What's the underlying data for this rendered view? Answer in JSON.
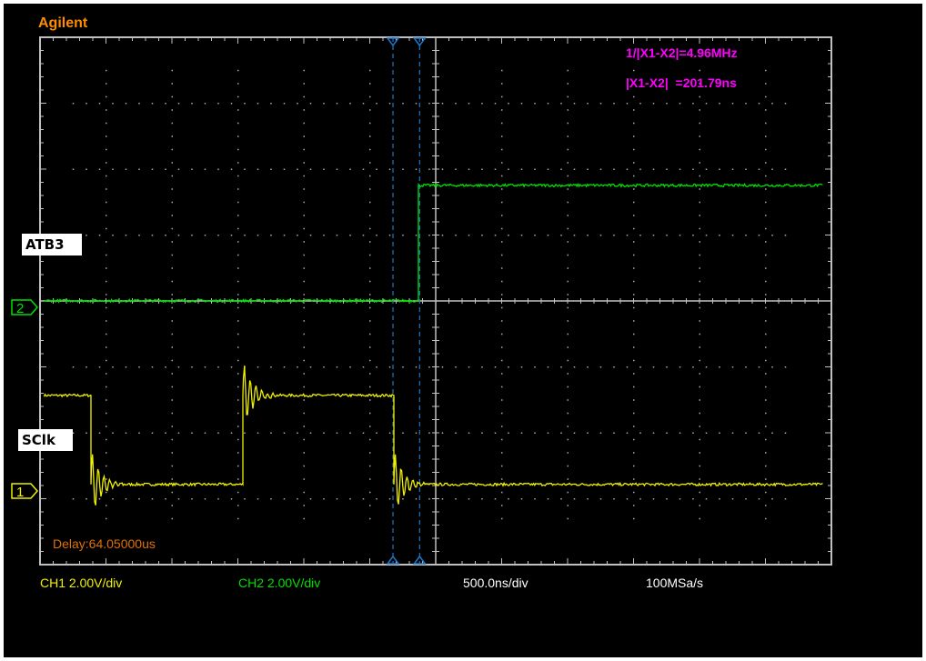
{
  "brand": "Agilent",
  "measurements": {
    "frequency": "1/|X1-X2|=4.96MHz",
    "delta_time": "|X1-X2|  =201.79ns"
  },
  "delay": "Delay:64.05000us",
  "status_bar": {
    "ch1_scale": "CH1 2.00V/div",
    "ch2_scale": "CH2 2.00V/div",
    "timebase": "500.0ns/div",
    "sample_rate": "100MSa/s"
  },
  "channel_labels": {
    "ch2": "ATB3",
    "ch1": "SClk"
  },
  "channel_markers": {
    "ch1": "1",
    "ch2": "2"
  },
  "colors": {
    "ch1": "#f0f000",
    "ch2": "#00e000",
    "cursor": "#1e78c8",
    "measure": "#ff00ff",
    "brand": "#ff8c00",
    "grid": "#c0c0c0"
  },
  "chart_data": {
    "type": "line",
    "title": "",
    "xlabel": "",
    "ylabel": "",
    "x_units": "ns",
    "xlim": [
      -3000,
      3000
    ],
    "x_divisions": 12,
    "y_units": "V",
    "y_divisions": 8,
    "grid": true,
    "cursors_ns": [
      -324,
      -122
    ],
    "series": [
      {
        "name": "SClk",
        "channel": 1,
        "volts_per_div": 2.0,
        "low_V": 0.2,
        "high_V": 2.9,
        "start_level": "high",
        "edges_ns": [
          -2614,
          -1462,
          -317
        ]
      },
      {
        "name": "ATB3",
        "channel": 2,
        "volts_per_div": 2.0,
        "low_V": 0.2,
        "high_V": 3.7,
        "start_level": "low",
        "edges_ns": [
          -131
        ]
      }
    ]
  }
}
